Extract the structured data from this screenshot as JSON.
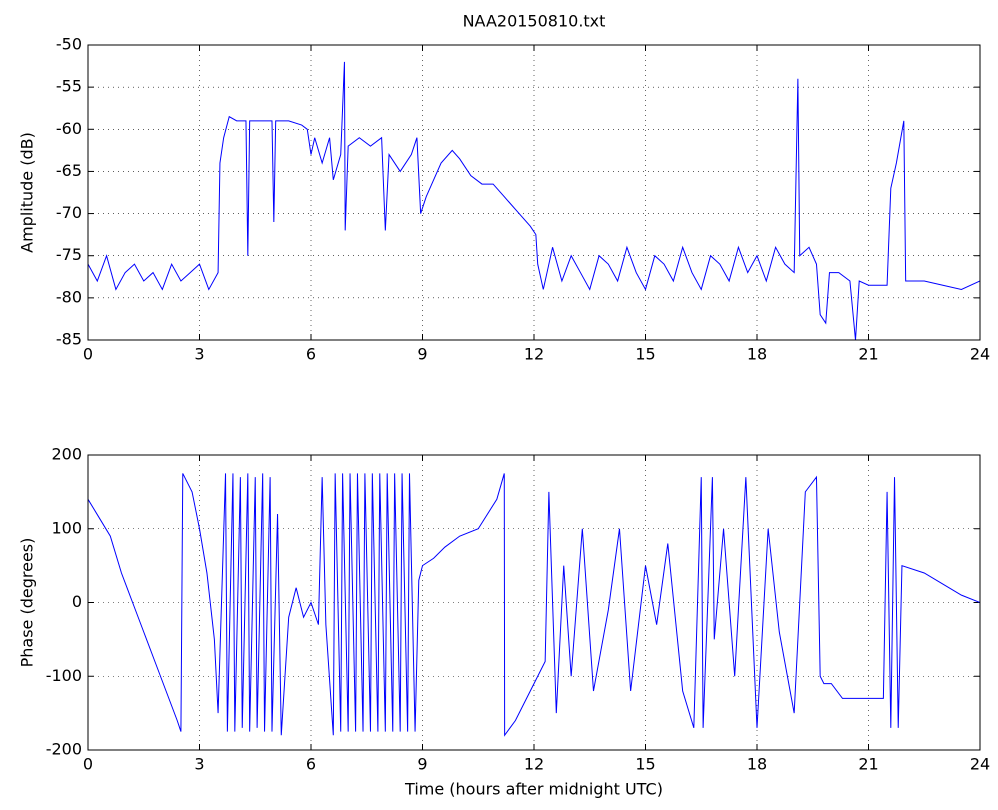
{
  "chart_data": [
    {
      "type": "line",
      "title": "NAA20150810.txt",
      "ylabel": "Amplitude (dB)",
      "x": [
        0,
        0.25,
        0.5,
        0.75,
        1,
        1.25,
        1.5,
        1.75,
        2,
        2.25,
        2.5,
        2.75,
        3,
        3.25,
        3.5,
        3.55,
        3.65,
        3.8,
        4.0,
        4.25,
        4.3,
        4.35,
        4.6,
        4.95,
        5.0,
        5.05,
        5.4,
        5.75,
        5.9,
        6.0,
        6.1,
        6.3,
        6.5,
        6.6,
        6.8,
        6.9,
        6.92,
        7.0,
        7.3,
        7.6,
        7.9,
        8.0,
        8.1,
        8.4,
        8.7,
        8.85,
        8.95,
        9.1,
        9.3,
        9.5,
        9.8,
        10.0,
        10.3,
        10.6,
        10.9,
        11.2,
        11.6,
        11.9,
        12.05,
        12.1,
        12.25,
        12.5,
        12.75,
        13,
        13.25,
        13.5,
        13.75,
        14,
        14.25,
        14.5,
        14.75,
        15,
        15.25,
        15.5,
        15.75,
        16,
        16.25,
        16.5,
        16.75,
        17,
        17.25,
        17.5,
        17.75,
        18,
        18.25,
        18.5,
        18.75,
        19,
        19.1,
        19.15,
        19.4,
        19.6,
        19.7,
        19.85,
        19.95,
        20.2,
        20.5,
        20.65,
        20.75,
        21.0,
        21.5,
        21.6,
        21.75,
        21.95,
        22.0,
        22.5,
        23.0,
        23.5,
        24.0
      ],
      "series": [
        {
          "color": "#0000ff",
          "values": [
            -76,
            -78,
            -75,
            -79,
            -77,
            -76,
            -78,
            -77,
            -79,
            -76,
            -78,
            -77,
            -76,
            -79,
            -77,
            -64,
            -61,
            -58.5,
            -59,
            -59,
            -75,
            -59,
            -59,
            -59,
            -71,
            -59,
            -59,
            -59.5,
            -60,
            -63,
            -61,
            -64,
            -61,
            -66,
            -63,
            -52,
            -72,
            -62,
            -61,
            -62,
            -61,
            -72,
            -63,
            -65,
            -63,
            -61,
            -70,
            -68,
            -66,
            -64,
            -62.5,
            -63.5,
            -65.5,
            -66.5,
            -66.5,
            -68,
            -70,
            -71.5,
            -72.5,
            -76,
            -79,
            -74,
            -78,
            -75,
            -77,
            -79,
            -75,
            -76,
            -78,
            -74,
            -77,
            -79,
            -75,
            -76,
            -78,
            -74,
            -77,
            -79,
            -75,
            -76,
            -78,
            -74,
            -77,
            -75,
            -78,
            -74,
            -76,
            -77,
            -54,
            -75,
            -74,
            -76,
            -82,
            -83,
            -77,
            -77,
            -78,
            -85,
            -78,
            -78.5,
            -78.5,
            -67,
            -64,
            -59,
            -78,
            -78,
            -78.5,
            -79,
            -78
          ]
        }
      ],
      "xlim": [
        0,
        24
      ],
      "xticks": [
        0,
        3,
        6,
        9,
        12,
        15,
        18,
        21,
        24
      ],
      "ylim": [
        -85,
        -50
      ],
      "yticks": [
        -85,
        -80,
        -75,
        -70,
        -65,
        -60,
        -55,
        -50
      ],
      "grid": true
    },
    {
      "type": "line",
      "ylabel": "Phase (degrees)",
      "xlabel": "Time (hours after midnight UTC)",
      "x": [
        0,
        0.3,
        0.6,
        0.9,
        1.2,
        1.5,
        1.8,
        2.1,
        2.4,
        2.5,
        2.55,
        2.8,
        3.0,
        3.2,
        3.4,
        3.5,
        3.7,
        3.75,
        3.9,
        3.95,
        4.1,
        4.15,
        4.3,
        4.35,
        4.5,
        4.55,
        4.7,
        4.75,
        4.9,
        4.95,
        5.1,
        5.2,
        5.4,
        5.6,
        5.8,
        6.0,
        6.2,
        6.3,
        6.4,
        6.6,
        6.65,
        6.8,
        6.85,
        7.0,
        7.05,
        7.2,
        7.25,
        7.4,
        7.45,
        7.6,
        7.65,
        7.8,
        7.85,
        8.0,
        8.05,
        8.2,
        8.25,
        8.4,
        8.45,
        8.6,
        8.65,
        8.8,
        8.9,
        9.0,
        9.3,
        9.6,
        10.0,
        10.5,
        11.0,
        11.2,
        11.21,
        11.5,
        12.0,
        12.3,
        12.4,
        12.6,
        12.8,
        13.0,
        13.3,
        13.6,
        14.0,
        14.3,
        14.6,
        15.0,
        15.3,
        15.6,
        16.0,
        16.3,
        16.5,
        16.55,
        16.8,
        16.85,
        17.1,
        17.4,
        17.7,
        18.0,
        18.3,
        18.6,
        19.0,
        19.3,
        19.6,
        19.7,
        19.8,
        20.0,
        20.3,
        20.6,
        21.0,
        21.4,
        21.5,
        21.6,
        21.7,
        21.8,
        21.9,
        22.5,
        23.0,
        23.5,
        24.0
      ],
      "series": [
        {
          "color": "#0000ff",
          "values": [
            140,
            115,
            90,
            40,
            0,
            -40,
            -80,
            -120,
            -160,
            -175,
            175,
            150,
            100,
            40,
            -50,
            -150,
            175,
            -175,
            175,
            -175,
            170,
            -170,
            175,
            -175,
            170,
            -170,
            175,
            -175,
            170,
            -175,
            120,
            -180,
            -20,
            20,
            -20,
            0,
            -30,
            170,
            -30,
            -180,
            175,
            -175,
            175,
            -175,
            175,
            -175,
            175,
            -175,
            175,
            -175,
            175,
            -175,
            175,
            -175,
            175,
            -175,
            175,
            -175,
            175,
            -175,
            175,
            -175,
            30,
            50,
            60,
            75,
            90,
            100,
            140,
            175,
            -180,
            -160,
            -110,
            -80,
            150,
            -150,
            50,
            -100,
            100,
            -120,
            -10,
            100,
            -120,
            50,
            -30,
            80,
            -120,
            -170,
            170,
            -170,
            170,
            -50,
            100,
            -100,
            170,
            -170,
            100,
            -40,
            -150,
            150,
            170,
            -100,
            -110,
            -110,
            -130,
            -130,
            -130,
            -130,
            150,
            -170,
            170,
            -170,
            50,
            40,
            25,
            10,
            0
          ]
        }
      ],
      "xlim": [
        0,
        24
      ],
      "xticks": [
        0,
        3,
        6,
        9,
        12,
        15,
        18,
        21,
        24
      ],
      "ylim": [
        -200,
        200
      ],
      "yticks": [
        -200,
        -100,
        0,
        100,
        200
      ],
      "grid": true
    }
  ]
}
